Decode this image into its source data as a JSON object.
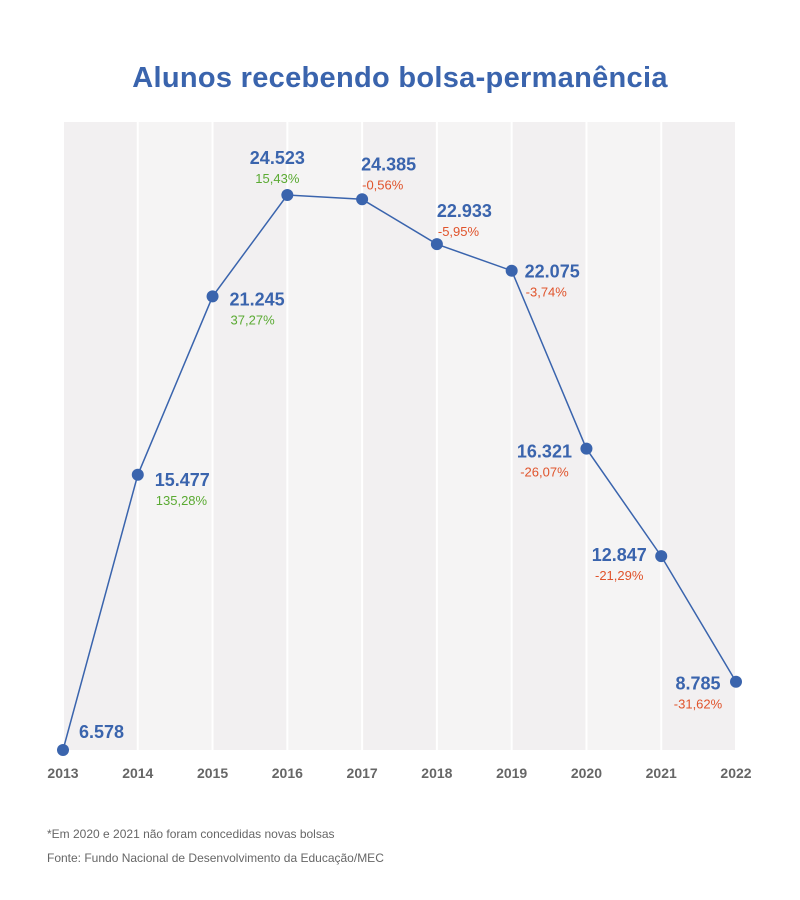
{
  "title": "Alunos recebendo bolsa-permanência",
  "footnote": "*Em 2020 e 2021 não foram concedidas novas bolsas",
  "source": "Fonte: Fundo Nacional de Desenvolvimento da Educação/MEC",
  "colors": {
    "line": "#3a64ad",
    "positive": "#5aaa32",
    "negative": "#e0532b",
    "band": "#f2f0f1",
    "axis_text": "#666666"
  },
  "chart_data": {
    "type": "line",
    "title": "Alunos recebendo bolsa-permanência",
    "x": [
      "2013",
      "2014",
      "2015",
      "2016",
      "2017",
      "2018",
      "2019",
      "2020",
      "2021",
      "2022"
    ],
    "values": [
      6578,
      15477,
      21245,
      24523,
      24385,
      22933,
      22075,
      16321,
      12847,
      8785
    ],
    "value_labels": [
      "6.578",
      "15.477",
      "21.245",
      "24.523",
      "24.385",
      "22.933",
      "22.075",
      "16.321",
      "12.847",
      "8.785"
    ],
    "change_labels": [
      "",
      "135,28%",
      "37,27%",
      "15,43%",
      "-0,56%",
      "-5,95%",
      "-3,74%",
      "-26,07%",
      "-21,29%",
      "-31,62%"
    ],
    "xlabel": "",
    "ylabel": "",
    "grid": "vertical-bands",
    "legend": "none"
  }
}
